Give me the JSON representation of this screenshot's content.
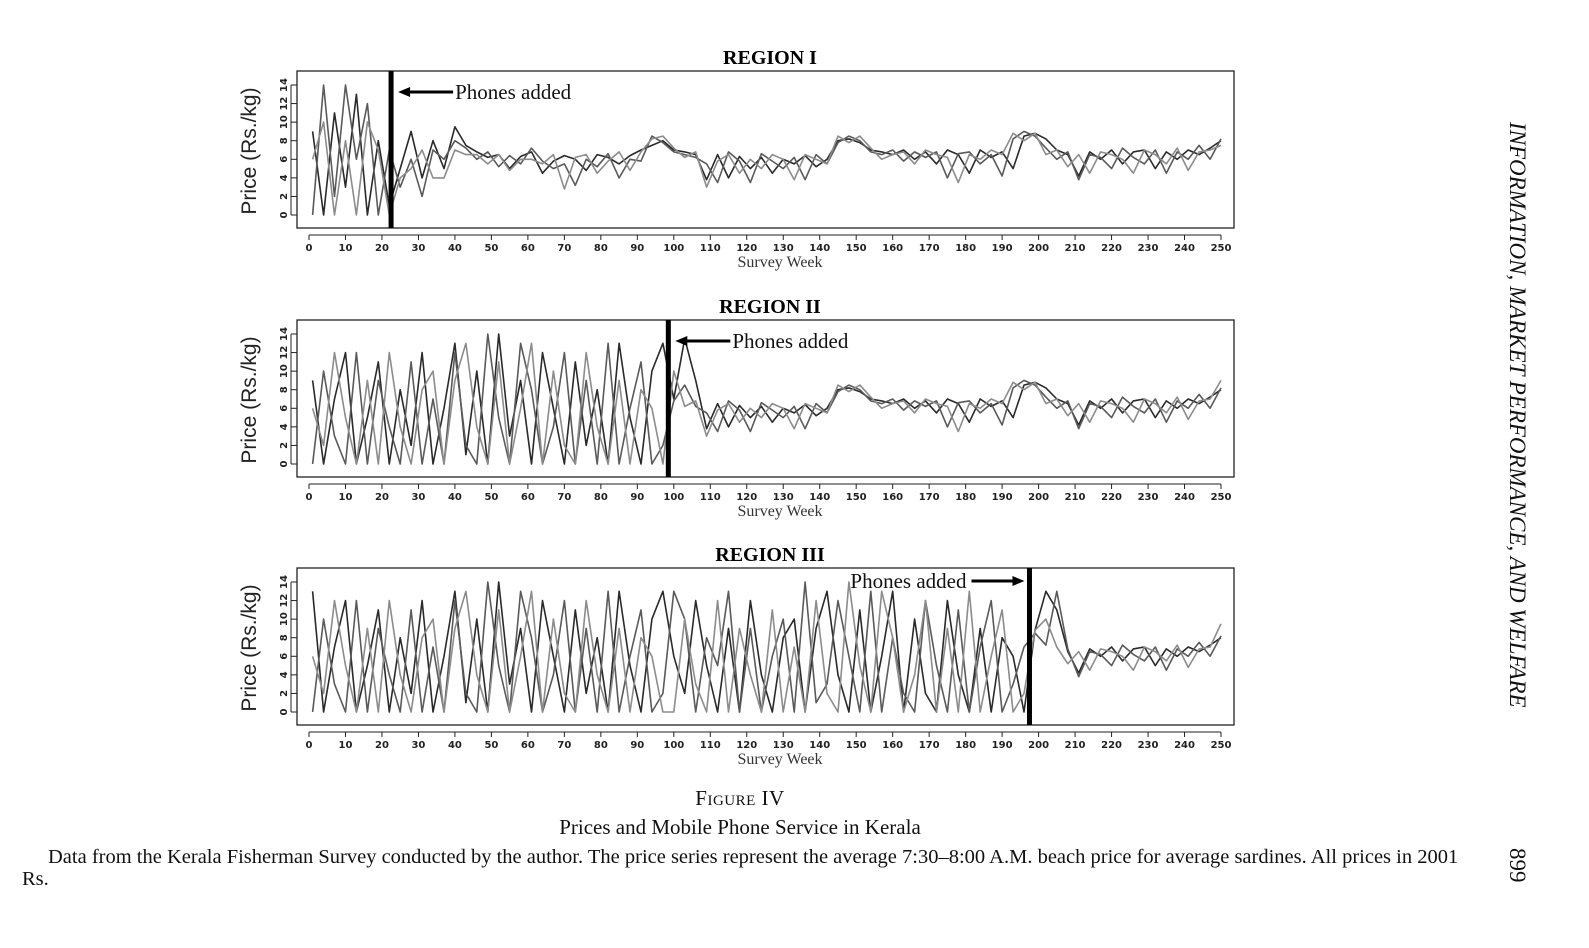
{
  "running_head": "INFORMATION, MARKET PERFORMANCE, AND WELFARE",
  "page_number": "899",
  "caption": {
    "label": "Figure IV",
    "title": "Prices and Mobile Phone Service in Kerala",
    "note": "Data from the Kerala Fisherman Survey conducted by the author. The price series represent the average 7:30–8:00 A.M. beach price for average sardines. All prices in 2001 Rs."
  },
  "colors": {
    "series": [
      "#2a2a2a",
      "#5a5a5a",
      "#8c8c8c"
    ],
    "marker_line": "#000000"
  },
  "chart_data": [
    {
      "type": "line",
      "title": "REGION I",
      "xlabel": "Survey Week",
      "ylabel": "Price (Rs./kg)",
      "xlim": [
        0,
        250
      ],
      "ylim": [
        0,
        14
      ],
      "xticks": [
        0,
        10,
        20,
        30,
        40,
        50,
        60,
        70,
        80,
        90,
        100,
        110,
        120,
        130,
        140,
        150,
        160,
        170,
        180,
        190,
        200,
        210,
        220,
        230,
        240,
        250
      ],
      "yticks": [
        0,
        2,
        4,
        6,
        8,
        10,
        12,
        14
      ],
      "grid": false,
      "annotation": {
        "text": "Phones added",
        "week": 22.5,
        "arrow": "left"
      },
      "x_start": 1,
      "x_step": 3,
      "series": [
        {
          "values": [
            9,
            0,
            11,
            3,
            13,
            0,
            8,
            1,
            5,
            9,
            4,
            8,
            5,
            9.5,
            7.5,
            6.8,
            6.2,
            6.5,
            5.0,
            6.3,
            6.8,
            4.5,
            5.8,
            6.4,
            6.0,
            4.8,
            6.5,
            6.2,
            5.5,
            6.4,
            7.0,
            7.5,
            8.0,
            7.0,
            6.8,
            6.5,
            3.8,
            6.5,
            4.0,
            6.3,
            5.0,
            6.2,
            4.5,
            6.0,
            5.5,
            6.4,
            5.2,
            6.0,
            8.0,
            8.2,
            7.8,
            7.0,
            6.8,
            6.5,
            7.0,
            6.0,
            6.8,
            5.5,
            7.0,
            6.5,
            4.5,
            7.0,
            6.2,
            6.8,
            5.0,
            8.5,
            8.8,
            8.2,
            7.0,
            6.5,
            4.2,
            6.8,
            6.0,
            7.0,
            5.5,
            6.8,
            7.0,
            5.0,
            6.8,
            6.0,
            7.0,
            6.5,
            7.2,
            8.0
          ]
        },
        {
          "values": [
            0,
            14,
            2,
            14,
            6,
            12,
            0,
            7,
            3,
            6,
            2,
            7,
            6,
            8.0,
            7.2,
            6.0,
            6.8,
            5.2,
            6.4,
            5.5,
            7.2,
            5.8,
            5.0,
            5.5,
            3.2,
            6.0,
            5.2,
            6.6,
            4.0,
            6.0,
            5.8,
            8.5,
            7.8,
            6.8,
            6.5,
            6.2,
            5.5,
            3.5,
            6.8,
            5.8,
            3.5,
            6.6,
            5.8,
            5.0,
            6.2,
            3.8,
            6.5,
            5.5,
            7.8,
            8.5,
            8.0,
            6.8,
            6.5,
            7.0,
            5.8,
            6.8,
            6.2,
            6.8,
            4.0,
            6.6,
            6.8,
            5.5,
            6.5,
            4.2,
            8.2,
            9.0,
            8.5,
            7.2,
            6.0,
            6.8,
            3.8,
            6.5,
            6.2,
            5.0,
            7.2,
            6.2,
            5.5,
            7.0,
            4.5,
            6.8,
            6.0,
            7.5,
            6.0,
            8.2
          ]
        },
        {
          "values": [
            6,
            10,
            0,
            8,
            0,
            10,
            7,
            0,
            4,
            5,
            7,
            4,
            4,
            7.0,
            6.5,
            6.5,
            5.5,
            6.5,
            4.8,
            6.0,
            6.0,
            5.5,
            6.5,
            2.8,
            6.2,
            6.5,
            4.5,
            5.8,
            6.8,
            4.8,
            6.8,
            8.2,
            8.5,
            7.2,
            6.2,
            6.8,
            3.0,
            5.8,
            6.5,
            4.5,
            6.0,
            5.0,
            6.5,
            6.0,
            3.8,
            6.5,
            6.0,
            5.5,
            8.5,
            7.8,
            8.5,
            7.2,
            6.0,
            6.5,
            6.8,
            5.5,
            7.0,
            6.5,
            6.2,
            3.5,
            6.5,
            6.0,
            7.0,
            6.5,
            8.8,
            8.0,
            8.8,
            6.5,
            7.0,
            5.2,
            6.5,
            4.5,
            6.8,
            6.5,
            6.0,
            4.5,
            7.0,
            6.5,
            5.5,
            7.2,
            4.8,
            6.8,
            7.0,
            7.5
          ]
        }
      ]
    },
    {
      "type": "line",
      "title": "REGION II",
      "xlabel": "Survey Week",
      "ylabel": "Price (Rs./kg)",
      "xlim": [
        0,
        250
      ],
      "ylim": [
        0,
        14
      ],
      "xticks": [
        0,
        10,
        20,
        30,
        40,
        50,
        60,
        70,
        80,
        90,
        100,
        110,
        120,
        130,
        140,
        150,
        160,
        170,
        180,
        190,
        200,
        210,
        220,
        230,
        240,
        250
      ],
      "yticks": [
        0,
        2,
        4,
        6,
        8,
        10,
        12,
        14
      ],
      "grid": false,
      "annotation": {
        "text": "Phones added",
        "week": 98.5,
        "arrow": "left"
      },
      "x_start": 1,
      "x_step": 3,
      "series": [
        {
          "values": [
            9,
            0,
            7,
            12,
            0,
            5,
            11,
            0,
            8,
            2,
            12,
            0,
            6,
            13,
            1,
            10,
            0,
            14,
            3,
            9,
            0,
            12,
            6,
            0,
            11,
            2,
            8,
            0,
            13,
            5,
            0,
            10,
            13,
            7.0,
            13.5,
            9.0,
            3.8,
            6.5,
            4.0,
            6.3,
            5.0,
            6.2,
            4.5,
            6.0,
            5.5,
            6.4,
            5.2,
            6.0,
            8.0,
            8.2,
            7.8,
            7.0,
            6.8,
            6.5,
            7.0,
            6.0,
            6.8,
            5.5,
            7.0,
            6.5,
            4.5,
            7.0,
            6.2,
            6.8,
            5.0,
            8.5,
            8.8,
            8.2,
            7.0,
            6.5,
            4.2,
            6.8,
            6.0,
            7.0,
            5.5,
            6.8,
            7.0,
            5.0,
            6.8,
            6.0,
            7.0,
            6.5,
            7.2,
            8.0
          ]
        },
        {
          "values": [
            0,
            10,
            3,
            0,
            12,
            0,
            9,
            4,
            0,
            11,
            0,
            7,
            0,
            12,
            2,
            0,
            14,
            5,
            0,
            13,
            8,
            0,
            4,
            12,
            0,
            9,
            0,
            13,
            0,
            6,
            11,
            0,
            2,
            6.8,
            8.5,
            6.2,
            5.5,
            3.5,
            6.8,
            5.8,
            3.5,
            6.6,
            5.8,
            5.0,
            6.2,
            3.8,
            6.5,
            5.5,
            7.8,
            8.5,
            8.0,
            6.8,
            6.5,
            7.0,
            5.8,
            6.8,
            6.2,
            6.8,
            4.0,
            6.6,
            6.8,
            5.5,
            6.5,
            4.2,
            8.2,
            9.0,
            8.5,
            7.2,
            6.0,
            6.8,
            3.8,
            6.5,
            6.2,
            5.0,
            7.2,
            6.2,
            5.5,
            7.0,
            4.5,
            6.8,
            6.0,
            7.5,
            6.0,
            8.2
          ]
        },
        {
          "values": [
            6,
            2,
            12,
            5,
            0,
            9,
            0,
            12,
            4,
            0,
            8,
            10,
            0,
            9,
            13,
            4,
            0,
            11,
            0,
            6,
            13,
            0,
            10,
            2,
            0,
            12,
            4,
            0,
            9,
            0,
            8,
            6,
            0,
            10.0,
            6.2,
            6.8,
            3.0,
            5.8,
            6.5,
            4.5,
            6.0,
            5.0,
            6.5,
            6.0,
            3.8,
            6.5,
            6.0,
            5.5,
            8.5,
            7.8,
            8.5,
            7.2,
            6.0,
            6.5,
            6.8,
            5.5,
            7.0,
            6.5,
            6.2,
            3.5,
            6.5,
            6.0,
            7.0,
            6.5,
            8.8,
            8.0,
            8.8,
            6.5,
            7.0,
            5.2,
            6.5,
            4.5,
            6.8,
            6.5,
            6.0,
            4.5,
            7.0,
            6.5,
            5.5,
            7.2,
            4.8,
            6.8,
            7.0,
            9.0
          ]
        }
      ]
    },
    {
      "type": "line",
      "title": "REGION III",
      "xlabel": "Survey Week",
      "ylabel": "Price (Rs./kg)",
      "xlim": [
        0,
        250
      ],
      "ylim": [
        0,
        14
      ],
      "xticks": [
        0,
        10,
        20,
        30,
        40,
        50,
        60,
        70,
        80,
        90,
        100,
        110,
        120,
        130,
        140,
        150,
        160,
        170,
        180,
        190,
        200,
        210,
        220,
        230,
        240,
        250
      ],
      "yticks": [
        0,
        2,
        4,
        6,
        8,
        10,
        12,
        14
      ],
      "grid": false,
      "annotation": {
        "text": "Phones added",
        "week": 197.5,
        "arrow": "right"
      },
      "x_start": 1,
      "x_step": 3,
      "series": [
        {
          "values": [
            13,
            0,
            7,
            12,
            0,
            5,
            11,
            0,
            8,
            2,
            12,
            0,
            6,
            13,
            1,
            10,
            0,
            14,
            3,
            9,
            0,
            12,
            6,
            0,
            11,
            2,
            8,
            0,
            13,
            5,
            0,
            10,
            13,
            6,
            2,
            12,
            5,
            0,
            9,
            0,
            12,
            4,
            0,
            8,
            10,
            0,
            9,
            13,
            4,
            0,
            11,
            0,
            6,
            13,
            0,
            10,
            2,
            0,
            12,
            4,
            0,
            9,
            0,
            8,
            6,
            0,
            8.8,
            13.0,
            11.0,
            6.5,
            4.2,
            6.8,
            6.0,
            7.0,
            5.5,
            6.8,
            7.0,
            5.0,
            6.8,
            6.0,
            7.0,
            6.5,
            7.2,
            8.0
          ]
        },
        {
          "values": [
            0,
            10,
            3,
            0,
            12,
            0,
            9,
            4,
            0,
            11,
            0,
            7,
            0,
            12,
            2,
            0,
            14,
            5,
            0,
            13,
            8,
            0,
            4,
            12,
            0,
            9,
            0,
            13,
            0,
            6,
            11,
            0,
            2,
            13,
            10,
            0,
            8,
            5,
            13,
            0,
            9,
            0,
            6,
            10,
            0,
            14,
            1,
            3,
            12,
            6,
            0,
            13,
            0,
            8,
            2,
            0,
            12,
            5,
            0,
            11,
            0,
            7,
            12,
            0,
            3,
            7,
            8.5,
            7.2,
            13.0,
            6.8,
            3.8,
            6.5,
            6.2,
            5.0,
            7.2,
            6.2,
            5.5,
            7.0,
            4.5,
            6.8,
            6.0,
            7.5,
            6.0,
            8.2
          ]
        },
        {
          "values": [
            6,
            2,
            12,
            5,
            0,
            9,
            0,
            12,
            4,
            0,
            8,
            10,
            0,
            9,
            13,
            4,
            0,
            11,
            0,
            6,
            13,
            0,
            10,
            2,
            0,
            12,
            4,
            0,
            9,
            0,
            8,
            6,
            0,
            0,
            10,
            3,
            0,
            12,
            0,
            9,
            4,
            0,
            11,
            0,
            7,
            0,
            12,
            2,
            0,
            14,
            5,
            0,
            13,
            8,
            0,
            4,
            12,
            0,
            9,
            0,
            13,
            0,
            6,
            11,
            0,
            2,
            8.8,
            10.0,
            7.0,
            5.2,
            6.5,
            4.5,
            6.8,
            6.5,
            6.0,
            4.5,
            7.0,
            6.5,
            5.5,
            7.2,
            4.8,
            6.8,
            7.0,
            9.5
          ]
        }
      ]
    }
  ]
}
